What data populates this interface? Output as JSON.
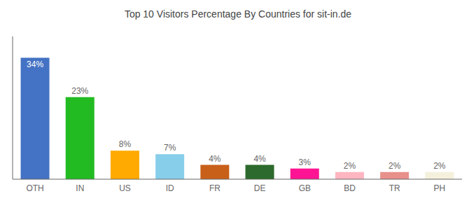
{
  "chart_data": {
    "type": "bar",
    "title": "Top 10 Visitors Percentage By Countries for sit-in.de",
    "categories": [
      "OTH",
      "IN",
      "US",
      "ID",
      "FR",
      "DE",
      "GB",
      "BD",
      "TR",
      "PH"
    ],
    "values": [
      34,
      23,
      8,
      7,
      4,
      4,
      3,
      2,
      2,
      2
    ],
    "value_labels": [
      "34%",
      "23%",
      "8%",
      "7%",
      "4%",
      "4%",
      "3%",
      "2%",
      "2%",
      "2%"
    ],
    "colors": [
      "#4472c4",
      "#22bb22",
      "#ffaa00",
      "#87ceeb",
      "#c8601a",
      "#2d6a2d",
      "#ff1493",
      "#ffb6c1",
      "#e8908a",
      "#f5f0dc"
    ],
    "ylim": [
      0,
      40
    ],
    "data_labels": true,
    "tick_labels": "x",
    "grid": false
  }
}
